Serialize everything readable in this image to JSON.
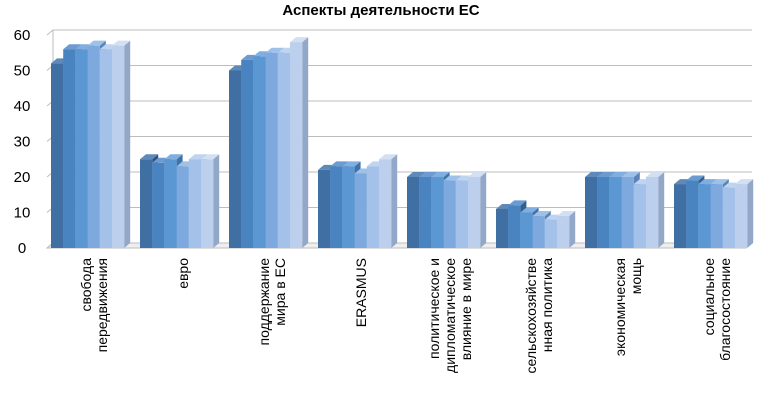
{
  "chart_data": {
    "type": "bar",
    "style": "3d-clustered-column",
    "title": "Аспекты деятельности ЕС",
    "xlabel": "",
    "ylabel": "",
    "ylim": [
      0,
      60
    ],
    "yticks": [
      0,
      10,
      20,
      30,
      40,
      50,
      60
    ],
    "grid": true,
    "legend": "none",
    "categories": [
      [
        "свобода",
        "передвижения"
      ],
      [
        "евро"
      ],
      [
        "поддержание",
        "мира в ЕС"
      ],
      [
        "ERASMUS"
      ],
      [
        "политическое и",
        "дипломатическое",
        "влияние в мире"
      ],
      [
        "сельскохозяйстве",
        "нная политика"
      ],
      [
        "экономическая",
        "мощь"
      ],
      [
        "социальное",
        "благосостояние"
      ]
    ],
    "series": [
      {
        "values": [
          52,
          25,
          50,
          22,
          20,
          11,
          20,
          18
        ]
      },
      {
        "values": [
          56,
          24,
          53,
          23,
          20,
          12,
          20,
          19
        ]
      },
      {
        "values": [
          56,
          25,
          54,
          23,
          20,
          10,
          20,
          18
        ]
      },
      {
        "values": [
          57,
          23,
          55,
          21,
          19,
          9,
          20,
          18
        ]
      },
      {
        "values": [
          56,
          25,
          55,
          23,
          19,
          8,
          18,
          17
        ]
      },
      {
        "values": [
          57,
          25,
          58,
          25,
          20,
          9,
          20,
          18
        ]
      }
    ],
    "colors": [
      {
        "front": "#3f6fa3",
        "side": "#2a5080",
        "top": "#5e89b8"
      },
      {
        "front": "#4a84c0",
        "side": "#33618f",
        "top": "#6b9bd0"
      },
      {
        "front": "#5b97d3",
        "side": "#3f73a8",
        "top": "#80aee0"
      },
      {
        "front": "#7da9de",
        "side": "#5a84b8",
        "top": "#9ec1e8"
      },
      {
        "front": "#a3c1e9",
        "side": "#7e9cc4",
        "top": "#bfd4f0"
      },
      {
        "front": "#bcd0ee",
        "side": "#93a8c8",
        "top": "#d3e0f4"
      }
    ]
  }
}
